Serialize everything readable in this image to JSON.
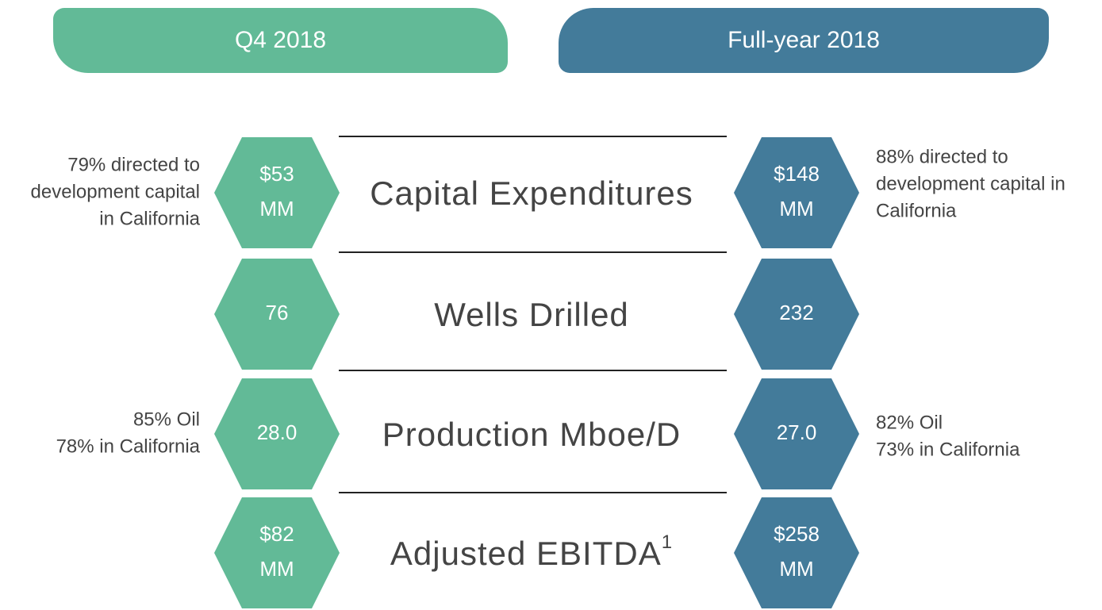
{
  "headers": {
    "left": "Q4 2018",
    "right": "Full-year 2018"
  },
  "rows": [
    {
      "label": "Capital Expenditures",
      "left_value": [
        "$53",
        "MM"
      ],
      "right_value": [
        "$148",
        "MM"
      ],
      "left_note": [
        "79% directed to",
        "development capital",
        "in California"
      ],
      "right_note": [
        "88% directed to",
        "development capital in",
        "California"
      ]
    },
    {
      "label": "Wells Drilled",
      "left_value": [
        "76"
      ],
      "right_value": [
        "232"
      ],
      "left_note": [],
      "right_note": []
    },
    {
      "label": "Production Mboe/D",
      "left_value": [
        "28.0"
      ],
      "right_value": [
        "27.0"
      ],
      "left_note": [
        "85% Oil",
        "78% in California"
      ],
      "right_note": [
        "82% Oil",
        "73% in California"
      ]
    },
    {
      "label": "Adjusted EBITDA",
      "footnote": "1",
      "left_value": [
        "$82",
        "MM"
      ],
      "right_value": [
        "$258",
        "MM"
      ],
      "left_note": [],
      "right_note": []
    }
  ]
}
